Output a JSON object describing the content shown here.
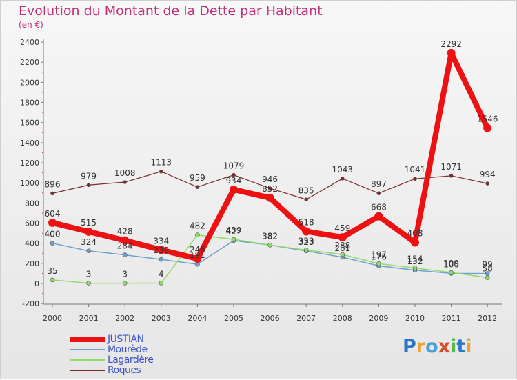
{
  "title": "Evolution du Montant de la Dette par Habitant",
  "subtitle": "(en €)",
  "logo_text": "Proxiti",
  "chart_data": {
    "type": "line",
    "categories": [
      "2000",
      "2001",
      "2002",
      "2003",
      "2004",
      "2005",
      "2006",
      "2007",
      "2008",
      "2009",
      "2010",
      "2011",
      "2012"
    ],
    "yticks": [
      -200,
      0,
      200,
      400,
      600,
      800,
      1000,
      1200,
      1400,
      1600,
      1800,
      2000,
      2200,
      2400
    ],
    "ylim": [
      -200,
      2400
    ],
    "grid": false,
    "legend_position": "bottom-left",
    "series": [
      {
        "name": "Roques",
        "color": "#7d2a2a",
        "values": [
          896,
          979,
          1008,
          1113,
          959,
          1079,
          946,
          835,
          1043,
          897,
          1041,
          1071,
          994
        ],
        "labels": [
          "896",
          "979",
          "1008",
          "1113",
          "959",
          "1079",
          "946",
          "835",
          "1043",
          "897",
          "1041",
          "1071",
          "994"
        ]
      },
      {
        "name": "Mourède",
        "color": "#6f9fd0",
        "values": [
          400,
          324,
          284,
          239,
          191,
          427,
          382,
          323,
          261,
          176,
          132,
          100,
          99
        ],
        "labels": [
          "400",
          "324",
          "284",
          "239",
          "191",
          "427",
          "382",
          "323",
          "261",
          "176",
          "132",
          "100",
          "99"
        ]
      },
      {
        "name": "Lagardère",
        "color": "#8fdc6a",
        "values": [
          35,
          3,
          3,
          4,
          482,
          439,
          382,
          333,
          288,
          197,
          154,
          109,
          58
        ],
        "labels": [
          "35",
          "3",
          "3",
          "4",
          "482",
          "439",
          "382",
          "333",
          "288",
          "197",
          "154",
          "109",
          "58"
        ]
      },
      {
        "name": "JUSTIAN",
        "color": "#ee1111",
        "values": [
          604,
          515,
          428,
          334,
          246,
          934,
          852,
          518,
          459,
          668,
          408,
          2292,
          1546
        ],
        "labels": [
          "604",
          "515",
          "428",
          "334",
          "246",
          "934",
          "852",
          "518",
          "459",
          "668",
          "408",
          "2292",
          "1546"
        ]
      }
    ],
    "legend_order": [
      "JUSTIAN",
      "Mourède",
      "Lagardère",
      "Roques"
    ]
  }
}
